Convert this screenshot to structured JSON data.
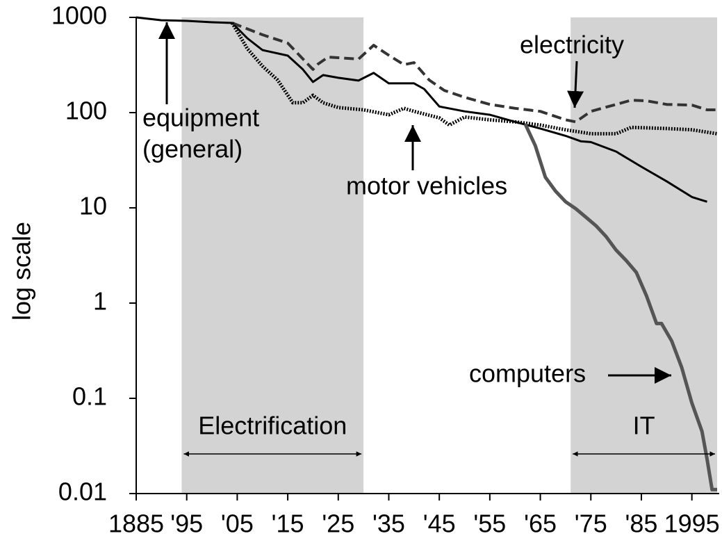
{
  "chart_data": {
    "type": "line",
    "y_label": "log scale",
    "log_y": true,
    "xlim": [
      1885,
      2000
    ],
    "ylim": [
      0.01,
      1000
    ],
    "xticks": [
      1885,
      {
        "value": 1895,
        "label": "'95"
      },
      {
        "value": 1905,
        "label": "'05"
      },
      {
        "value": 1915,
        "label": "'15"
      },
      {
        "value": 1925,
        "label": "'25"
      },
      {
        "value": 1935,
        "label": "'35"
      },
      {
        "value": 1945,
        "label": "'45"
      },
      {
        "value": 1955,
        "label": "'55"
      },
      {
        "value": 1965,
        "label": "'65"
      },
      {
        "value": 1975,
        "label": "'75"
      },
      {
        "value": 1985,
        "label": "'85"
      },
      1995
    ],
    "yticks": [
      0.01,
      0.1,
      1,
      10,
      100,
      1000
    ],
    "shaded": [
      {
        "start": 1894,
        "end": 1930,
        "label": "Electrification",
        "color": "#d3d3d3"
      },
      {
        "start": 1971,
        "end": 2000,
        "label": "IT",
        "color": "#d3d3d3"
      }
    ],
    "annotations": [
      {
        "text": [
          "equipment",
          "(general)"
        ]
      },
      {
        "text": [
          "electricity"
        ]
      },
      {
        "text": [
          "motor vehicles"
        ]
      },
      {
        "text": [
          "computers"
        ]
      }
    ],
    "series": [
      {
        "name": "equipment (general)",
        "color": "#000000",
        "width": 3,
        "dash": "none",
        "x": [
          1885,
          1890,
          1895,
          1900,
          1904,
          1907,
          1910,
          1915,
          1918,
          1920,
          1922,
          1925,
          1929,
          1932,
          1935,
          1940,
          1942,
          1945,
          1950,
          1955,
          1960,
          1965,
          1970,
          1973,
          1975,
          1980,
          1985,
          1990,
          1995,
          1998
        ],
        "values": [
          1000,
          934,
          920,
          889,
          874,
          604,
          454,
          397,
          284,
          210,
          248,
          232,
          217,
          261,
          203,
          203,
          177,
          116,
          103,
          95,
          80,
          68,
          57,
          50,
          49,
          39,
          27,
          19,
          13,
          11.6
        ]
      },
      {
        "name": "electricity",
        "color": "#333333",
        "width": 4,
        "dash": "14 7",
        "x": [
          1904,
          1910,
          1915,
          1920,
          1921,
          1923,
          1929,
          1932,
          1935,
          1938,
          1940,
          1943,
          1946,
          1950,
          1955,
          1960,
          1965,
          1970,
          1972,
          1975,
          1980,
          1983,
          1986,
          1990,
          1995,
          1998,
          2000
        ],
        "values": [
          874,
          657,
          537,
          284,
          324,
          383,
          365,
          510,
          400,
          319,
          335,
          220,
          171,
          145,
          122,
          111,
          103,
          84,
          80,
          103,
          122,
          135,
          133,
          122,
          120,
          107,
          107
        ]
      },
      {
        "name": "motor vehicles",
        "color": "#000000",
        "width": 5,
        "dash": "2 2",
        "x": [
          1904,
          1907,
          1910,
          1913,
          1916,
          1918,
          1920,
          1922,
          1925,
          1930,
          1935,
          1938,
          1940,
          1945,
          1947,
          1950,
          1955,
          1960,
          1965,
          1970,
          1975,
          1980,
          1983,
          1990,
          1995,
          2000
        ],
        "values": [
          874,
          469,
          308,
          220,
          127,
          127,
          152,
          127,
          113,
          107,
          95,
          111,
          103,
          88,
          74,
          90,
          84,
          80,
          74,
          66,
          60,
          60,
          70,
          68,
          66,
          60
        ]
      },
      {
        "name": "computers",
        "color": "#555555",
        "width": 5,
        "dash": "none",
        "x": [
          1962,
          1964,
          1966,
          1968,
          1970,
          1972,
          1974,
          1976,
          1978,
          1980,
          1982,
          1984,
          1986,
          1988,
          1989,
          1991,
          1993,
          1995,
          1997,
          1998,
          1999,
          2000
        ],
        "values": [
          76,
          45,
          21,
          15,
          11.6,
          9.8,
          8,
          6.5,
          5,
          3.6,
          2.8,
          2.1,
          1.2,
          0.61,
          0.61,
          0.4,
          0.21,
          0.089,
          0.045,
          0.023,
          0.011,
          0.011
        ]
      }
    ]
  }
}
